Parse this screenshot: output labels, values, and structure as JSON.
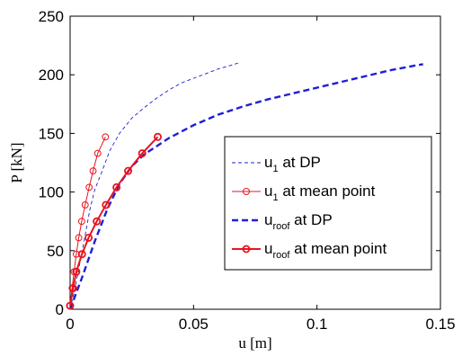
{
  "chart_data": {
    "type": "line",
    "xlabel": "u [m]",
    "ylabel": "P [kN]",
    "xlim": [
      0,
      0.15
    ],
    "ylim": [
      0,
      250
    ],
    "x_ticks": [
      "0",
      "0.05",
      "0.1",
      "0.15"
    ],
    "y_ticks": [
      "0",
      "50",
      "100",
      "150",
      "200",
      "250"
    ],
    "grid": false,
    "legend_position": "right",
    "series": [
      {
        "name_main": "u",
        "name_sub": "1",
        "name_suffix": " at DP",
        "color": "#1f1fd6",
        "line": "dashed-thin",
        "marker": "none",
        "points": [
          [
            0,
            0
          ],
          [
            0.002,
            18
          ],
          [
            0.004,
            40
          ],
          [
            0.006,
            62
          ],
          [
            0.008,
            85
          ],
          [
            0.01,
            102
          ],
          [
            0.013,
            118
          ],
          [
            0.016,
            135
          ],
          [
            0.02,
            150
          ],
          [
            0.025,
            163
          ],
          [
            0.03,
            172
          ],
          [
            0.035,
            180
          ],
          [
            0.04,
            187
          ],
          [
            0.045,
            193
          ],
          [
            0.05,
            197
          ],
          [
            0.055,
            201
          ],
          [
            0.06,
            205
          ],
          [
            0.065,
            208
          ],
          [
            0.068,
            210
          ]
        ]
      },
      {
        "name_main": "u",
        "name_sub": "1",
        "name_suffix": " at mean point",
        "color": "#e8141e",
        "line": "solid-thin",
        "marker": "circle",
        "points": [
          [
            0,
            3
          ],
          [
            0.0008,
            18
          ],
          [
            0.0016,
            32
          ],
          [
            0.0025,
            47
          ],
          [
            0.0035,
            61
          ],
          [
            0.0047,
            75
          ],
          [
            0.0061,
            89
          ],
          [
            0.0077,
            104
          ],
          [
            0.0093,
            118
          ],
          [
            0.0112,
            133
          ],
          [
            0.0143,
            147
          ]
        ]
      },
      {
        "name_main": "u",
        "name_sub": "roof",
        "name_suffix": " at DP",
        "color": "#1f1fd6",
        "line": "dashed-thick",
        "marker": "none",
        "points": [
          [
            0,
            0
          ],
          [
            0.005,
            28
          ],
          [
            0.01,
            58
          ],
          [
            0.015,
            85
          ],
          [
            0.02,
            107
          ],
          [
            0.025,
            122
          ],
          [
            0.03,
            132
          ],
          [
            0.04,
            146
          ],
          [
            0.05,
            157
          ],
          [
            0.06,
            166
          ],
          [
            0.07,
            173
          ],
          [
            0.08,
            179
          ],
          [
            0.09,
            184
          ],
          [
            0.1,
            189
          ],
          [
            0.11,
            194
          ],
          [
            0.12,
            199
          ],
          [
            0.13,
            204
          ],
          [
            0.14,
            208
          ],
          [
            0.143,
            209
          ]
        ]
      },
      {
        "name_main": "u",
        "name_sub": "roof",
        "name_suffix": " at mean point",
        "color": "#e8141e",
        "line": "solid-thick",
        "marker": "circle",
        "points": [
          [
            0,
            3
          ],
          [
            0.0012,
            18
          ],
          [
            0.0025,
            32
          ],
          [
            0.0048,
            47
          ],
          [
            0.0075,
            61
          ],
          [
            0.0108,
            75
          ],
          [
            0.0145,
            89
          ],
          [
            0.0188,
            104
          ],
          [
            0.0235,
            118
          ],
          [
            0.0292,
            133
          ],
          [
            0.0355,
            147
          ]
        ]
      }
    ]
  }
}
